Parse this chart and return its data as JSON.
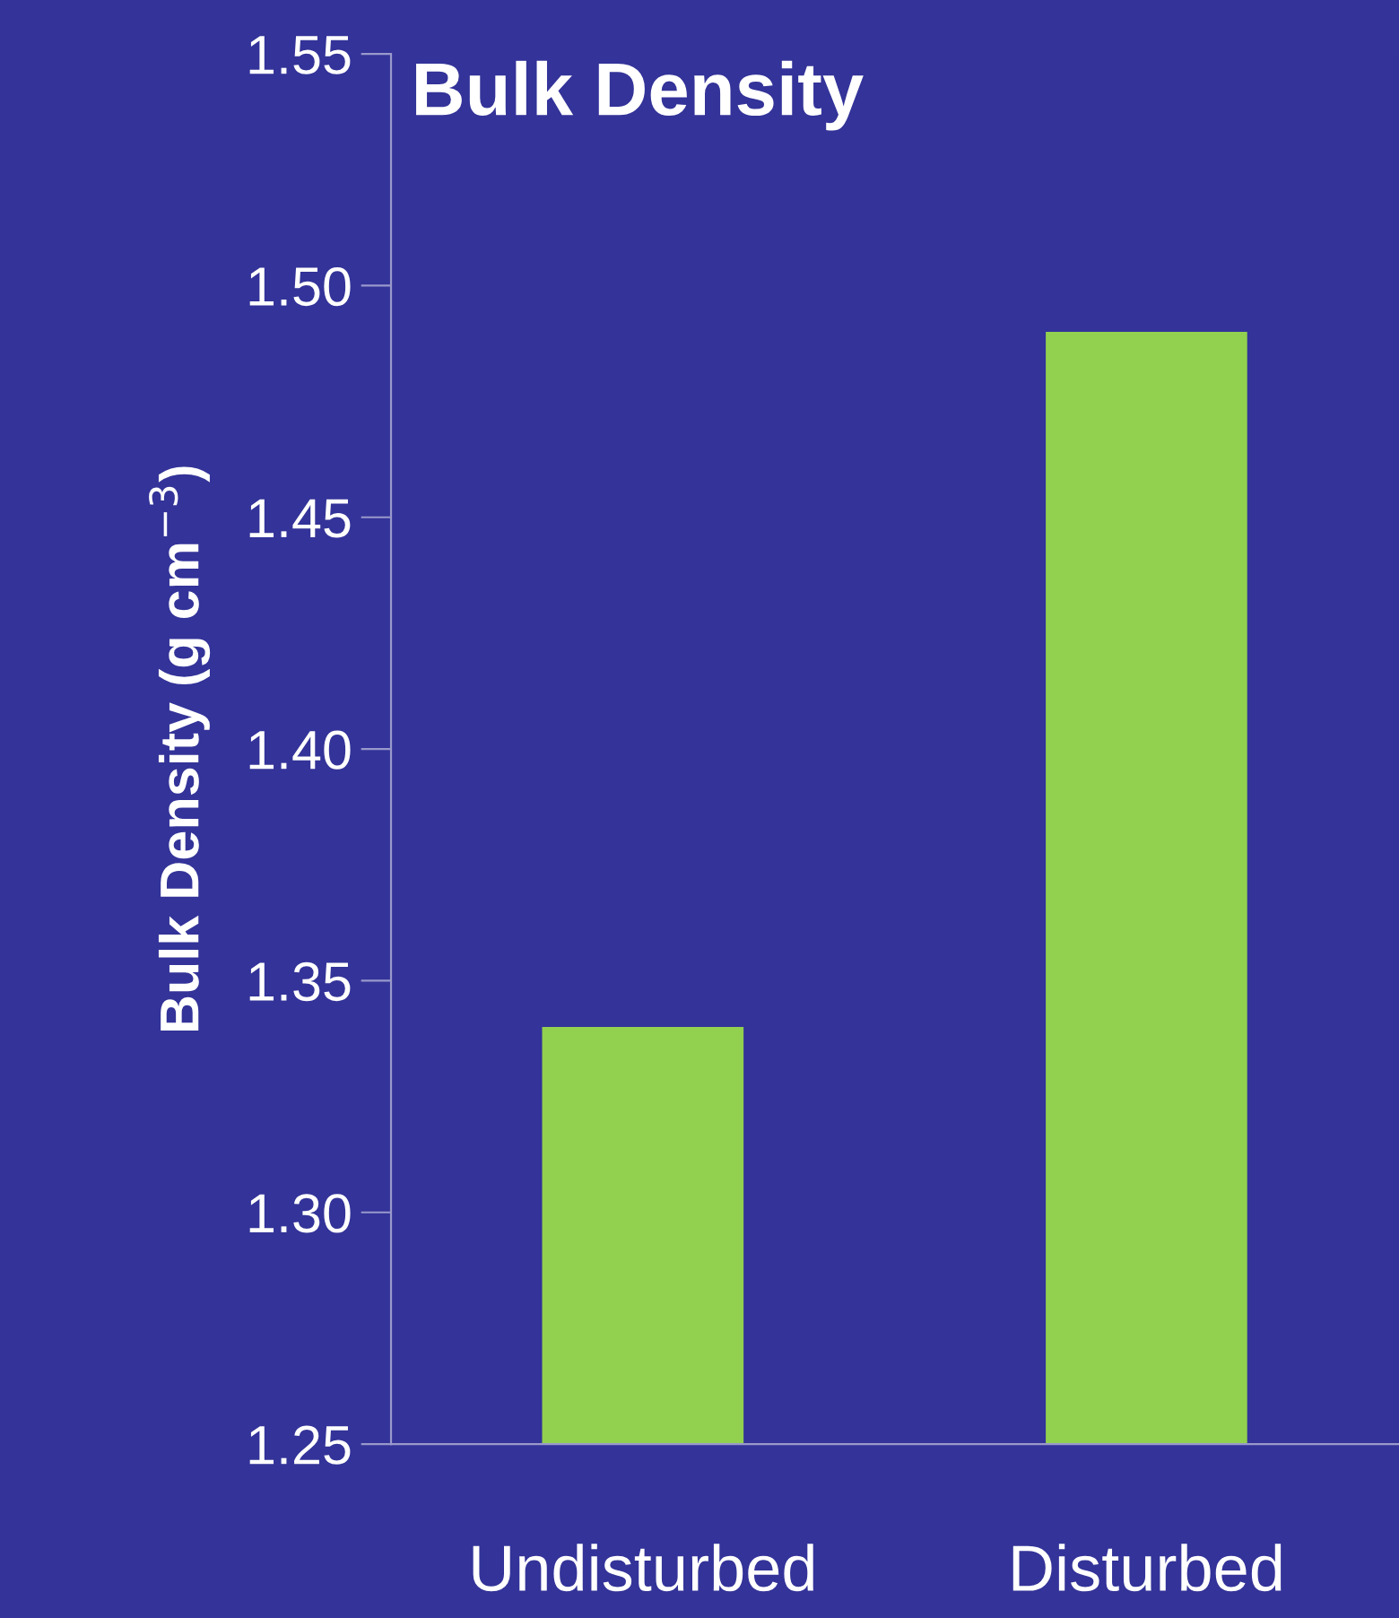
{
  "chart_data": {
    "type": "bar",
    "title": "Bulk Density",
    "ylabel": "Bulk Density (g cm$^{−3}$)",
    "categories": [
      "Undisturbed",
      "Disturbed"
    ],
    "values": [
      1.34,
      1.49
    ],
    "color": "#92d050",
    "ylim": [
      1.25,
      1.55
    ],
    "yticks": [
      1.25,
      {
        "value": 1.3,
        "label": "1.30"
      },
      1.35,
      {
        "value": 1.4,
        "label": "1.40"
      },
      1.45,
      {
        "value": 1.5,
        "label": "1.50"
      },
      1.55
    ],
    "grid": false,
    "legend": false
  }
}
